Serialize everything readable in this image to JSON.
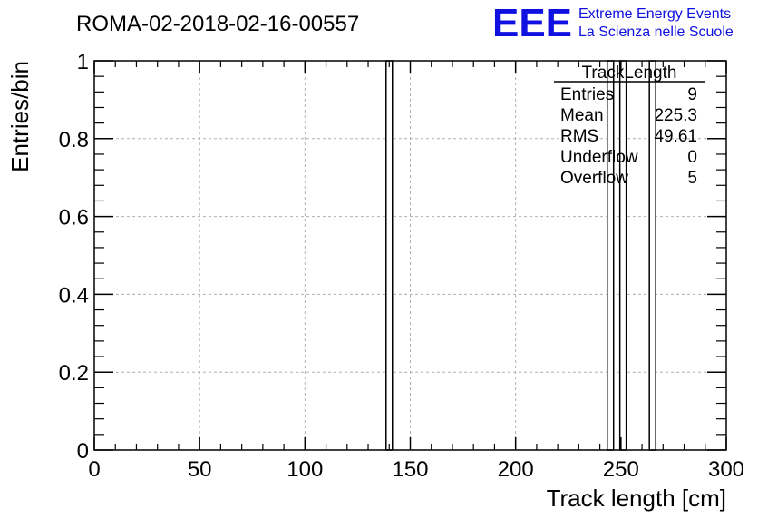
{
  "chart_data": {
    "type": "bar",
    "title": "ROMA-02-2018-02-16-00557",
    "xlabel": "Track length [cm]",
    "ylabel": "Entries/bin",
    "xlim": [
      0,
      300
    ],
    "ylim": [
      0,
      1
    ],
    "x_ticks": [
      "0",
      "50",
      "100",
      "150",
      "200",
      "250",
      "300"
    ],
    "y_ticks": [
      "0",
      "0.2",
      "0.4",
      "0.6",
      "0.8",
      "1"
    ],
    "grid": true,
    "bins": [
      {
        "x0": 138.5,
        "x1": 141.5,
        "value": 1
      },
      {
        "x0": 243.5,
        "x1": 246.5,
        "value": 1
      },
      {
        "x0": 249.5,
        "x1": 252.5,
        "value": 1
      },
      {
        "x0": 263.5,
        "x1": 266.5,
        "value": 1
      }
    ]
  },
  "stats_box": {
    "title": "TrackLength",
    "rows": [
      {
        "label": "Entries",
        "value": "9"
      },
      {
        "label": "Mean",
        "value": "225.3"
      },
      {
        "label": "RMS",
        "value": "49.61"
      },
      {
        "label": "Underflow",
        "value": "0"
      },
      {
        "label": "Overflow",
        "value": "5"
      }
    ]
  },
  "logo": {
    "mark": "EEE",
    "line1": "Extreme Energy Events",
    "line2": "La Scienza nelle Scuole",
    "color": "#1010e0"
  }
}
